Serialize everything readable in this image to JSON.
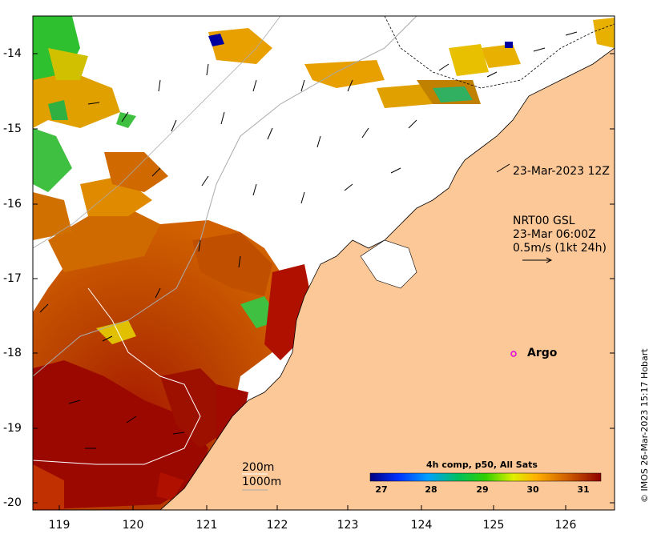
{
  "colors": {
    "land": "#fdc898",
    "sst_low": "#000090",
    "sst_high": "#8b0000",
    "argo_marker": "#e000e0"
  },
  "axes": {
    "x_ticks": [
      "119",
      "120",
      "121",
      "122",
      "123",
      "124",
      "125",
      "126"
    ],
    "y_ticks": [
      "-14",
      "-15",
      "-16",
      "-17",
      "-18",
      "-19",
      "-20"
    ]
  },
  "annotations": {
    "timestamp_label": "23-Mar-2023 12Z",
    "current_source": "NRT00 GSL",
    "current_time": "23-Mar 06:00Z",
    "current_scale": "0.5m/s (1kt 24h)",
    "argo_label": "Argo",
    "contour_200": "200m",
    "contour_1000": "1000m"
  },
  "colorbar": {
    "title": "4h comp, p50, All Sats",
    "ticks": [
      "27",
      "28",
      "29",
      "30",
      "31"
    ],
    "range": [
      26.5,
      31.5
    ]
  },
  "credit": "© IMOS 26-Mar-2023 15:17 Hobart"
}
